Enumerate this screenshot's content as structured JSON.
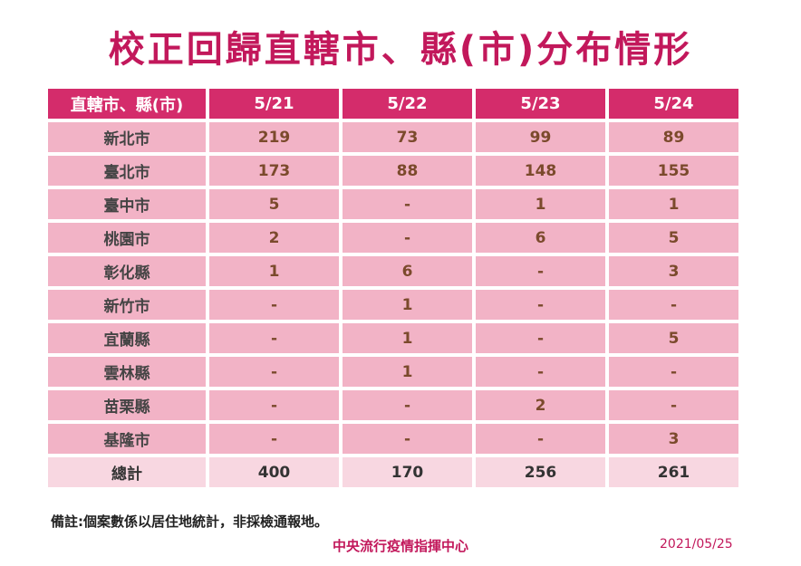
{
  "title": "校正回歸直轄市、縣(市)分布情形",
  "table": {
    "headers": [
      "直轄市、縣(市)",
      "5/21",
      "5/22",
      "5/23",
      "5/24"
    ],
    "rows": [
      {
        "name": "新北市",
        "values": [
          "219",
          "73",
          "99",
          "89"
        ]
      },
      {
        "name": "臺北市",
        "values": [
          "173",
          "88",
          "148",
          "155"
        ]
      },
      {
        "name": "臺中市",
        "values": [
          "5",
          "-",
          "1",
          "1"
        ]
      },
      {
        "name": "桃園市",
        "values": [
          "2",
          "-",
          "6",
          "5"
        ]
      },
      {
        "name": "彰化縣",
        "values": [
          "1",
          "6",
          "-",
          "3"
        ]
      },
      {
        "name": "新竹市",
        "values": [
          "-",
          "1",
          "-",
          "-"
        ]
      },
      {
        "name": "宜蘭縣",
        "values": [
          "-",
          "1",
          "-",
          "5"
        ]
      },
      {
        "name": "雲林縣",
        "values": [
          "-",
          "1",
          "-",
          "-"
        ]
      },
      {
        "name": "苗栗縣",
        "values": [
          "-",
          "-",
          "2",
          "-"
        ]
      },
      {
        "name": "基隆市",
        "values": [
          "-",
          "-",
          "-",
          "3"
        ]
      }
    ],
    "total": {
      "name": "總計",
      "values": [
        "400",
        "170",
        "256",
        "261"
      ]
    }
  },
  "note": "備註:個案數係以居住地統計，非採檢通報地。",
  "footer": {
    "agency": "中央流行疫情指揮中心",
    "date": "2021/05/25"
  },
  "colors": {
    "title": "#c2185b",
    "header_bg": "#d42c6b",
    "cell_bg": "#f2b3c6",
    "total_bg": "#f8d7e1"
  }
}
